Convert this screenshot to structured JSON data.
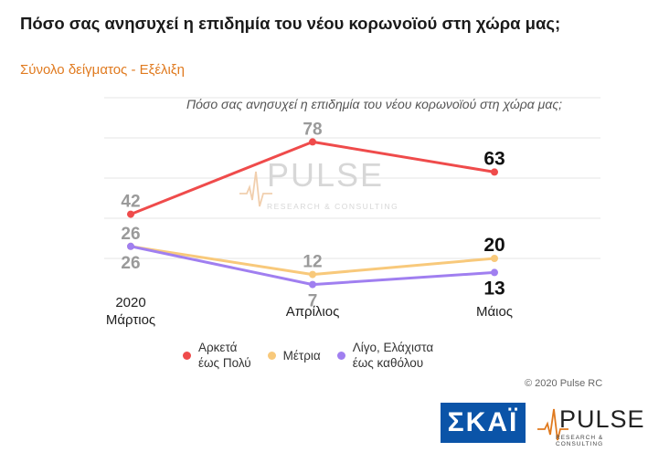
{
  "header": {
    "title": "Πόσο σας ανησυχεί η επιδημία του νέου κορωνοϊού στη χώρα μας;",
    "subtitle": "Σύνολο δείγματος - Εξέλιξη"
  },
  "chart_data": {
    "type": "line",
    "title": "Πόσο σας ανησυχεί η επιδημία του νέου κορωνοϊού στη χώρα μας;",
    "categories": [
      "2020\nΜάρτιος",
      "Απρίλιος",
      "Μάιος"
    ],
    "series": [
      {
        "name": "Αρκετά\nέως Πολύ",
        "color": "#ef4b4b",
        "values": [
          42,
          78,
          63
        ]
      },
      {
        "name": "Μέτρια",
        "color": "#f8c97b",
        "values": [
          26,
          12,
          20
        ]
      },
      {
        "name": "Λίγο, Ελάχιστα\nέως καθόλου",
        "color": "#a07ff0",
        "values": [
          26,
          7,
          13
        ]
      }
    ],
    "ylim": [
      0,
      100
    ],
    "grid": true,
    "legend": "bottom",
    "watermark": {
      "word": "PULSE",
      "tagline": "RESEARCH & CONSULTING"
    }
  },
  "footer": {
    "copyright": "© 2020 Pulse RC",
    "logo_left": "ΣΚΑΪ",
    "logo_right": {
      "word": "PULSE",
      "tagline": "RESEARCH & CONSULTING"
    }
  }
}
